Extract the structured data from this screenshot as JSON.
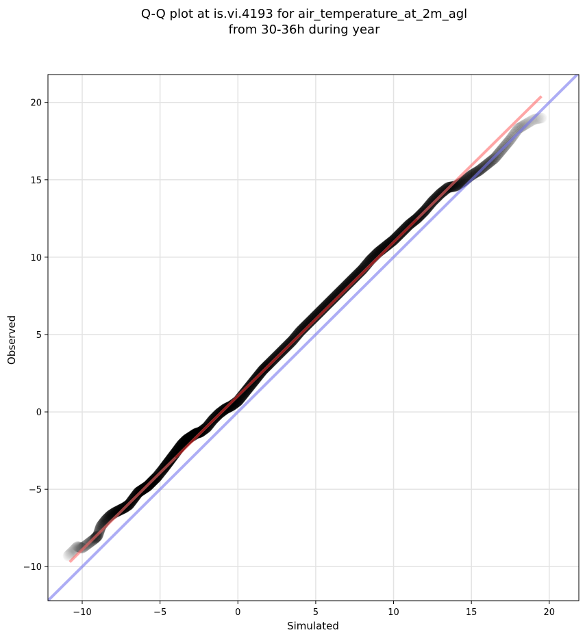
{
  "chart_data": {
    "type": "scatter",
    "title": [
      "Q-Q plot at is.vi.4193 for air_temperature_at_2m_agl",
      "from 30-36h during year"
    ],
    "xlabel": "Simulated",
    "ylabel": "Observed",
    "xlim": [
      -12.2,
      21.9
    ],
    "ylim": [
      -12.2,
      21.8
    ],
    "xticks": [
      -10,
      -5,
      0,
      5,
      10,
      15,
      20
    ],
    "yticks": [
      -10,
      -5,
      0,
      5,
      10,
      15,
      20
    ],
    "xtick_labels": [
      "−10",
      "−5",
      "0",
      "5",
      "10",
      "15",
      "20"
    ],
    "ytick_labels": [
      "−10",
      "−5",
      "0",
      "5",
      "10",
      "15",
      "20"
    ],
    "grid": true,
    "colors": {
      "points": "#000000",
      "fit_line": "#ff6a6a",
      "identity_line": "#7777ee",
      "inner_fit": "#8b0000"
    },
    "quantile_points": [
      [
        -10.9,
        -9.3
      ],
      [
        -10.6,
        -9.0
      ],
      [
        -10.3,
        -8.7
      ],
      [
        -10.0,
        -8.8
      ],
      [
        -9.6,
        -8.5
      ],
      [
        -9.2,
        -8.2
      ],
      [
        -9.0,
        -8.0
      ],
      [
        -8.8,
        -7.4
      ],
      [
        -8.5,
        -7.0
      ],
      [
        -8.2,
        -6.7
      ],
      [
        -7.9,
        -6.5
      ],
      [
        -7.6,
        -6.35
      ],
      [
        -7.3,
        -6.2
      ],
      [
        -7.0,
        -6.0
      ],
      [
        -6.7,
        -5.6
      ],
      [
        -6.4,
        -5.2
      ],
      [
        -6.1,
        -5.0
      ],
      [
        -5.8,
        -4.8
      ],
      [
        -5.5,
        -4.5
      ],
      [
        -5.2,
        -4.2
      ],
      [
        -4.8,
        -3.7
      ],
      [
        -4.5,
        -3.3
      ],
      [
        -4.2,
        -2.9
      ],
      [
        -3.9,
        -2.5
      ],
      [
        -3.6,
        -2.1
      ],
      [
        -3.3,
        -1.8
      ],
      [
        -3.0,
        -1.6
      ],
      [
        -2.7,
        -1.4
      ],
      [
        -2.4,
        -1.3
      ],
      [
        -2.0,
        -1.0
      ],
      [
        -1.6,
        -0.5
      ],
      [
        -1.2,
        -0.1
      ],
      [
        -0.8,
        0.2
      ],
      [
        -0.4,
        0.4
      ],
      [
        0.0,
        0.7
      ],
      [
        0.4,
        1.2
      ],
      [
        0.8,
        1.7
      ],
      [
        1.2,
        2.2
      ],
      [
        1.6,
        2.7
      ],
      [
        2.0,
        3.1
      ],
      [
        2.5,
        3.6
      ],
      [
        3.0,
        4.1
      ],
      [
        3.5,
        4.6
      ],
      [
        4.0,
        5.2
      ],
      [
        4.5,
        5.7
      ],
      [
        5.0,
        6.2
      ],
      [
        5.5,
        6.7
      ],
      [
        6.0,
        7.2
      ],
      [
        6.5,
        7.7
      ],
      [
        7.0,
        8.2
      ],
      [
        7.5,
        8.7
      ],
      [
        8.0,
        9.2
      ],
      [
        8.5,
        9.8
      ],
      [
        9.0,
        10.3
      ],
      [
        9.5,
        10.7
      ],
      [
        10.0,
        11.1
      ],
      [
        10.5,
        11.6
      ],
      [
        11.0,
        12.1
      ],
      [
        11.5,
        12.5
      ],
      [
        12.0,
        13.0
      ],
      [
        12.5,
        13.6
      ],
      [
        13.0,
        14.1
      ],
      [
        13.5,
        14.5
      ],
      [
        14.0,
        14.6
      ],
      [
        14.5,
        14.9
      ],
      [
        15.0,
        15.3
      ],
      [
        15.5,
        15.6
      ],
      [
        16.0,
        16.0
      ],
      [
        16.5,
        16.4
      ],
      [
        17.0,
        17.0
      ],
      [
        17.5,
        17.6
      ],
      [
        18.0,
        18.3
      ],
      [
        18.5,
        18.6
      ],
      [
        19.0,
        18.9
      ],
      [
        19.5,
        19.0
      ]
    ],
    "fit_line": [
      [
        -10.8,
        -9.7
      ],
      [
        19.5,
        20.4
      ]
    ],
    "identity_line": [
      [
        -12.2,
        -12.2
      ],
      [
        21.9,
        21.9
      ]
    ]
  }
}
